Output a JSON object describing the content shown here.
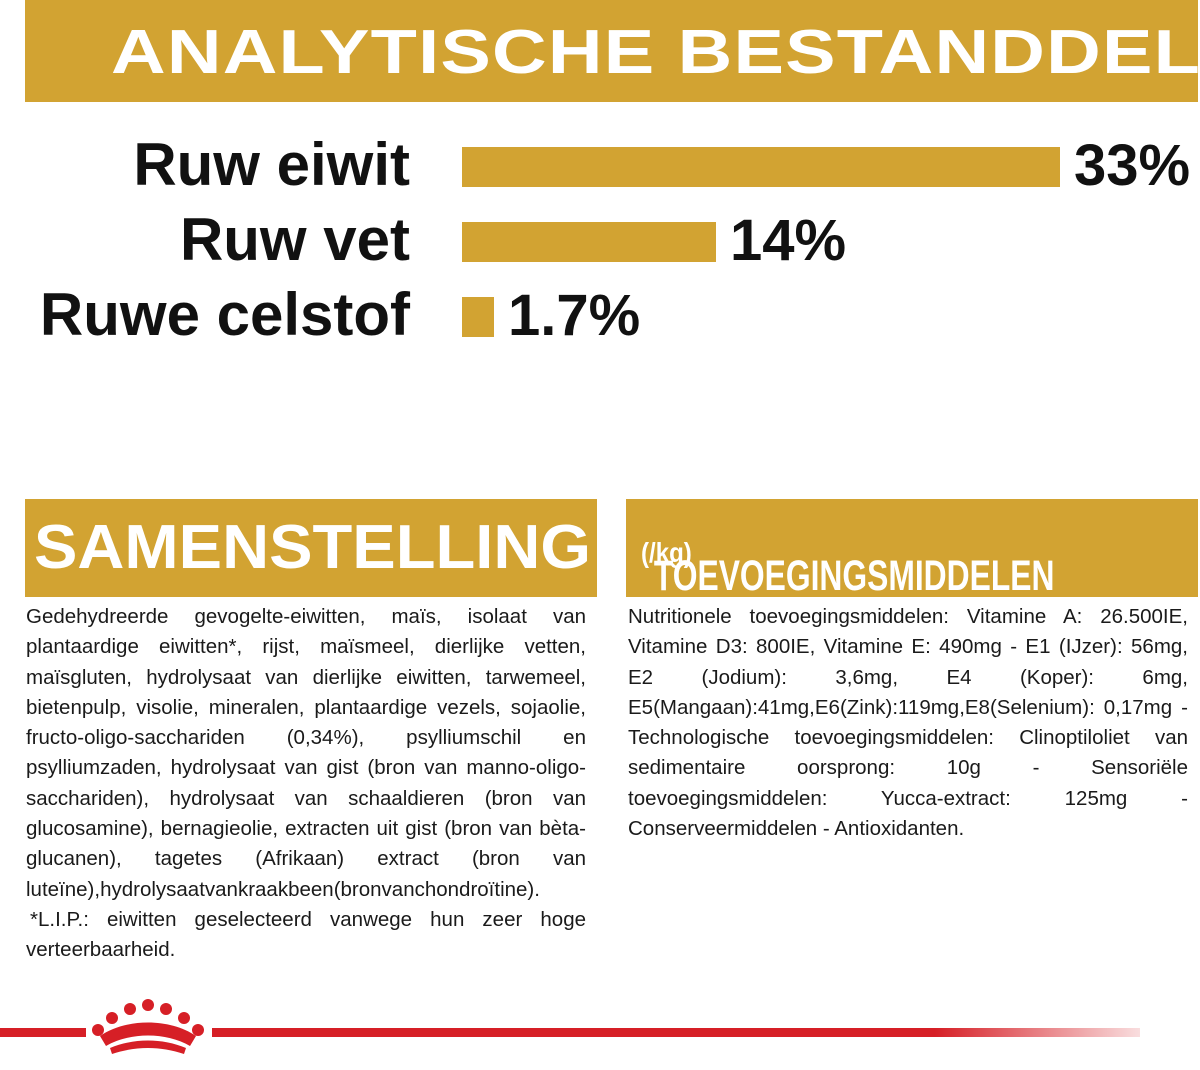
{
  "header": {
    "title": "ANALYTISCHE BESTANDDELEN"
  },
  "chart_data": {
    "type": "bar",
    "orientation": "horizontal",
    "categories": [
      "Ruw eiwit",
      "Ruw vet",
      "Ruwe celstof"
    ],
    "values": [
      33,
      14,
      1.7
    ],
    "value_labels": [
      "33%",
      "14%",
      "1.7%"
    ],
    "unit": "%",
    "xlim": [
      0,
      33
    ],
    "grid": false,
    "bar_color": "#d2a332"
  },
  "samenstelling": {
    "title": "SAMENSTELLING",
    "text": "Gedehydreerde gevogelte-eiwitten, maïs, isolaat van plantaardige eiwitten*, rijst, maïsmeel, dierlijke vetten, maïsgluten, hydrolysaat van dierlijke eiwitten, tarwemeel, bietenpulp, visolie, mineralen, plantaardige vezels, sojaolie, fructo-oligo-sacchariden (0,34%), psylliumschil en psylliumzaden, hydrolysaat van gist (bron van manno-oligo-sacchariden), hydrolysaat van schaaldieren (bron van glucosamine), bernagieolie, extracten uit gist (bron van bèta-glucanen), tagetes (Afrikaan) extract (bron van luteïne),hydrolysaatvankraakbeen(bronvanchondroïtine).",
    "footnote": "*L.I.P.: eiwitten geselecteerd vanwege hun zeer hoge verteerbaarheid."
  },
  "toevoegingsmiddelen": {
    "title": "TOEVOEGINGSMIDDELEN",
    "unit": "(/kg)",
    "text": "Nutritionele toevoegingsmiddelen: Vitamine A: 26.500IE, Vitamine D3: 800IE, Vitamine E: 490mg - E1 (IJzer): 56mg, E2 (Jodium): 3,6mg, E4 (Koper): 6mg, E5(Mangaan):41mg,E6(Zink):119mg,E8(Selenium): 0,17mg - Technologische toevoegingsmiddelen: Clinoptiloliet van sedimentaire oorsprong: 10g - Sensoriële toevoegingsmiddelen: Yucca-extract: 125mg - Conserveermiddelen - Antioxidanten."
  },
  "colors": {
    "accent": "#d2a332",
    "brand_red": "#d61f26"
  },
  "footer": {
    "icon": "crown-logo-icon"
  }
}
